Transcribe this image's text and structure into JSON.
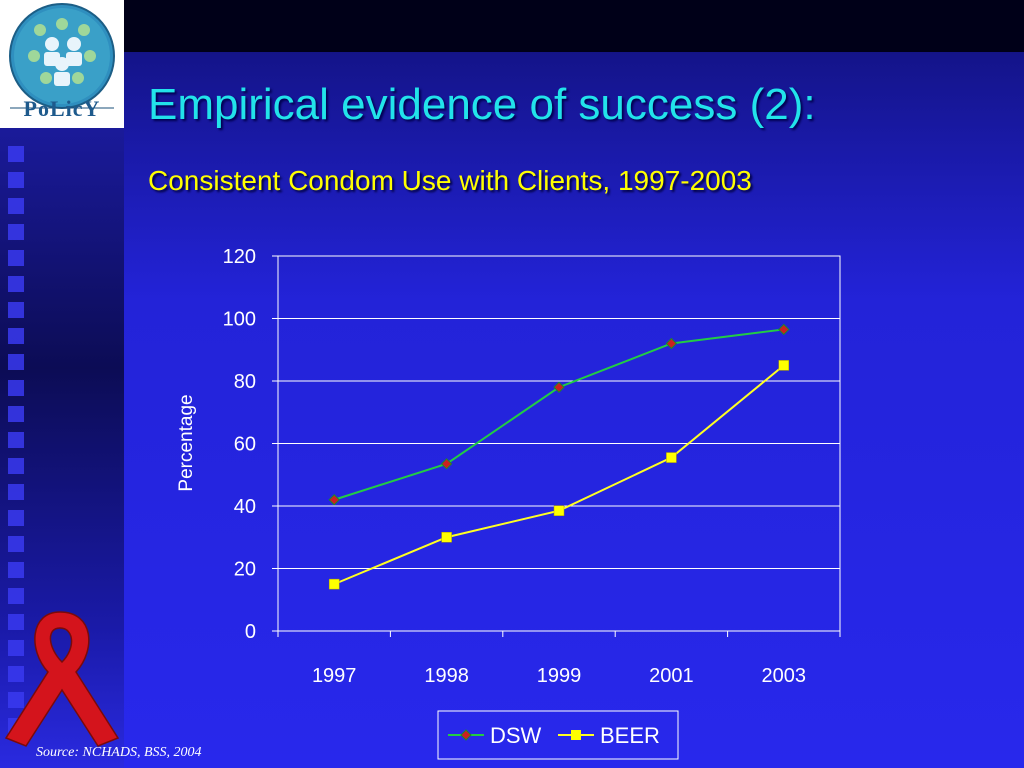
{
  "slide": {
    "title": "Empirical evidence of success (2):",
    "subtitle": "Consistent Condom Use with Clients, 1997-2003",
    "logo_text": "PoLicY",
    "source": "Source: NCHADS, BSS, 2004",
    "colors": {
      "title": "#22e3ea",
      "subtitle": "#ffff00",
      "background": "#2828ec"
    }
  },
  "chart_data": {
    "type": "line",
    "categories": [
      "1997",
      "1998",
      "1999",
      "2001",
      "2003"
    ],
    "series": [
      {
        "name": "DSW",
        "values": [
          42,
          53.5,
          78,
          92,
          96.5
        ],
        "color": "#22cc44",
        "marker": "diamond",
        "marker_color": "#cc2020"
      },
      {
        "name": "BEER",
        "values": [
          15,
          30,
          38.5,
          55.5,
          85
        ],
        "color": "#ffff22",
        "marker": "square",
        "marker_color": "#ffff00"
      }
    ],
    "ylabel": "Percentage",
    "xlabel": "",
    "ylim": [
      0,
      120
    ],
    "yticks": [
      0,
      20,
      40,
      60,
      80,
      100,
      120
    ],
    "grid": true,
    "legend": "bottom"
  }
}
